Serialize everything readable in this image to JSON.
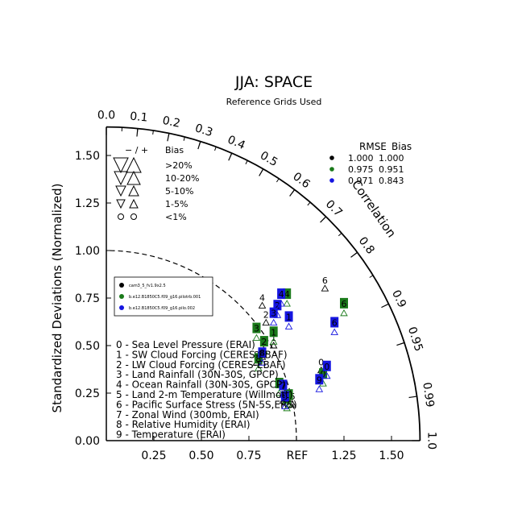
{
  "chart_data": {
    "type": "scatter",
    "title": "JJA: SPACE",
    "subtitle": "Reference Grids Used",
    "ylabel": "Standardized Deviations (Normalized)",
    "angle_label": "Correlation",
    "ref_label": "REF",
    "radial_ticks": [
      "0.00",
      "0.25",
      "0.50",
      "0.75",
      "1.00",
      "1.25",
      "1.50"
    ],
    "radial_tick_values": [
      0,
      0.25,
      0.5,
      0.75,
      1.0,
      1.25,
      1.5
    ],
    "correlation_ticks": [
      "0.0",
      "0.1",
      "0.2",
      "0.3",
      "0.4",
      "0.5",
      "0.6",
      "0.7",
      "0.8",
      "0.9",
      "0.95",
      "0.99",
      "1.0"
    ],
    "correlation_tick_values": [
      0.0,
      0.1,
      0.2,
      0.3,
      0.4,
      0.5,
      0.6,
      0.7,
      0.8,
      0.9,
      0.95,
      0.99,
      1.0
    ],
    "rmax": 1.65,
    "bias_legend": {
      "header_signs": "− / +",
      "header_bias": "Bias",
      "rows": [
        ">20%",
        "10-20%",
        "5-10%",
        "1-5%",
        "<1%"
      ]
    },
    "rmse_table": {
      "headers": [
        "RMSE",
        "Bias"
      ],
      "rows": [
        {
          "rmse": "1.000",
          "bias": "1.000",
          "color": "#000000"
        },
        {
          "rmse": "0.975",
          "bias": "0.951",
          "color": "#1a7a1a"
        },
        {
          "rmse": "0.971",
          "bias": "0.843",
          "color": "#1515e0"
        }
      ]
    },
    "cases": [
      {
        "name": "cam3_5_fv1.9x2.5",
        "color": "#000000"
      },
      {
        "name": "b.e12.B1850C5.f09_g16.pilotrb.001",
        "color": "#1a7a1a"
      },
      {
        "name": "b.e12.B1850C5.f09_g16.pilo.002",
        "color": "#1515e0"
      }
    ],
    "variables": [
      "0 - Sea Level Pressure (ERAI)",
      "1 - SW Cloud Forcing (CERES-EBAF)",
      "2 - LW Cloud Forcing (CERES-EBAF)",
      "3 - Land Rainfall (30N-30S, GPCP)",
      "4 - Ocean Rainfall (30N-30S, GPCP)",
      "5 - Land 2-m Temperature (Willmott)",
      "6 - Pacific Surface Stress (5N-5S,ERS)",
      "7 - Zonal Wind (300mb, ERAI)",
      "8 - Relative Humidity (ERAI)",
      "9 - Temperature (ERAI)"
    ],
    "points": [
      {
        "case": 0,
        "var": "0",
        "x": 1.13,
        "y": 0.37
      },
      {
        "case": 0,
        "var": "1",
        "x": 0.88,
        "y": 0.5
      },
      {
        "case": 0,
        "var": "2",
        "x": 0.84,
        "y": 0.62
      },
      {
        "case": 0,
        "var": "3",
        "x": 0.82,
        "y": 0.44
      },
      {
        "case": 0,
        "var": "4",
        "x": 0.82,
        "y": 0.71
      },
      {
        "case": 0,
        "var": "5",
        "x": 0.98,
        "y": 0.19
      },
      {
        "case": 0,
        "var": "6",
        "x": 1.15,
        "y": 0.8
      },
      {
        "case": 0,
        "var": "7",
        "x": 0.93,
        "y": 0.21
      },
      {
        "case": 0,
        "var": "8",
        "x": 0.79,
        "y": 0.41
      },
      {
        "case": 0,
        "var": "9",
        "x": 0.94,
        "y": 0.2
      },
      {
        "case": 1,
        "var": "0",
        "x": 1.14,
        "y": 0.3
      },
      {
        "case": 1,
        "var": "1",
        "x": 0.88,
        "y": 0.52
      },
      {
        "case": 1,
        "var": "2",
        "x": 0.83,
        "y": 0.47
      },
      {
        "case": 1,
        "var": "3",
        "x": 0.79,
        "y": 0.54
      },
      {
        "case": 1,
        "var": "4",
        "x": 0.95,
        "y": 0.72
      },
      {
        "case": 1,
        "var": "5",
        "x": 0.96,
        "y": 0.19
      },
      {
        "case": 1,
        "var": "6",
        "x": 1.25,
        "y": 0.67
      },
      {
        "case": 1,
        "var": "7",
        "x": 0.91,
        "y": 0.25
      },
      {
        "case": 1,
        "var": "8",
        "x": 0.8,
        "y": 0.38
      },
      {
        "case": 1,
        "var": "9",
        "x": 0.95,
        "y": 0.17
      },
      {
        "case": 2,
        "var": "0",
        "x": 1.16,
        "y": 0.34
      },
      {
        "case": 2,
        "var": "1",
        "x": 0.96,
        "y": 0.6
      },
      {
        "case": 2,
        "var": "2",
        "x": 0.9,
        "y": 0.66
      },
      {
        "case": 2,
        "var": "3",
        "x": 0.88,
        "y": 0.62
      },
      {
        "case": 2,
        "var": "4",
        "x": 0.92,
        "y": 0.72
      },
      {
        "case": 2,
        "var": "5",
        "x": 0.94,
        "y": 0.18
      },
      {
        "case": 2,
        "var": "6",
        "x": 1.2,
        "y": 0.57
      },
      {
        "case": 2,
        "var": "7",
        "x": 0.93,
        "y": 0.24
      },
      {
        "case": 2,
        "var": "8",
        "x": 0.82,
        "y": 0.41
      },
      {
        "case": 2,
        "var": "9",
        "x": 1.12,
        "y": 0.27
      }
    ]
  }
}
